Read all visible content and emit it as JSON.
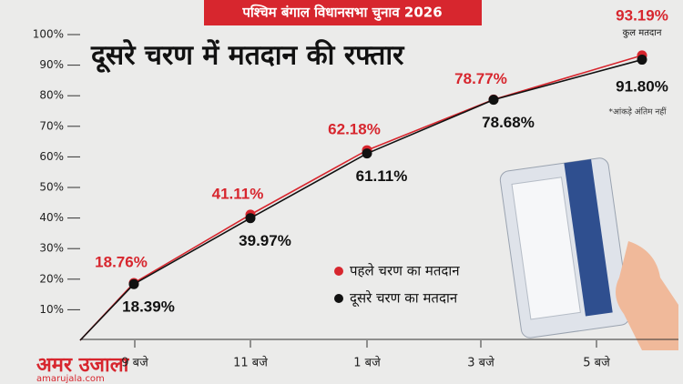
{
  "header": "पश्चिम बंगाल विधानसभा चुनाव 2026",
  "footer": {
    "logo": "अमर उजाला",
    "site": "amarujala.com"
  },
  "chart_data": {
    "type": "line",
    "title": "दूसरे चरण में मतदान की रफ्तार",
    "annotations": {
      "total": "कुल मतदान",
      "note": "*आंकड़े अंतिम नहीं"
    },
    "categories": [
      null,
      "9 बजे",
      "11 बजे",
      "1 बजे",
      "3 बजे",
      "5 बजे"
    ],
    "series": [
      {
        "name": "पहले चरण का मतदान",
        "color": "#d7262e",
        "values": [
          0,
          18.76,
          41.11,
          62.18,
          78.77,
          93.19
        ],
        "value_labels": [
          null,
          "18.76%",
          "41.11%",
          "62.18%",
          "78.77%",
          "93.19%"
        ]
      },
      {
        "name": "दूसरे चरण का मतदान",
        "color": "#111111",
        "values": [
          0,
          18.39,
          39.97,
          61.11,
          78.68,
          91.8
        ],
        "value_labels": [
          null,
          "18.39%",
          "39.97%",
          "61.11%",
          "78.68%",
          "91.80%"
        ]
      }
    ],
    "ylim": [
      0,
      100
    ],
    "yticks": [
      {
        "value": 10,
        "label": "10%"
      },
      {
        "value": 20,
        "label": "20%"
      },
      {
        "value": 30,
        "label": "30%"
      },
      {
        "value": 40,
        "label": "40%"
      },
      {
        "value": 50,
        "label": "50%"
      },
      {
        "value": 60,
        "label": "60%"
      },
      {
        "value": 70,
        "label": "70%"
      },
      {
        "value": 80,
        "label": "80%"
      },
      {
        "value": 90,
        "label": "90%"
      },
      {
        "value": 100,
        "label": "100%"
      }
    ]
  }
}
